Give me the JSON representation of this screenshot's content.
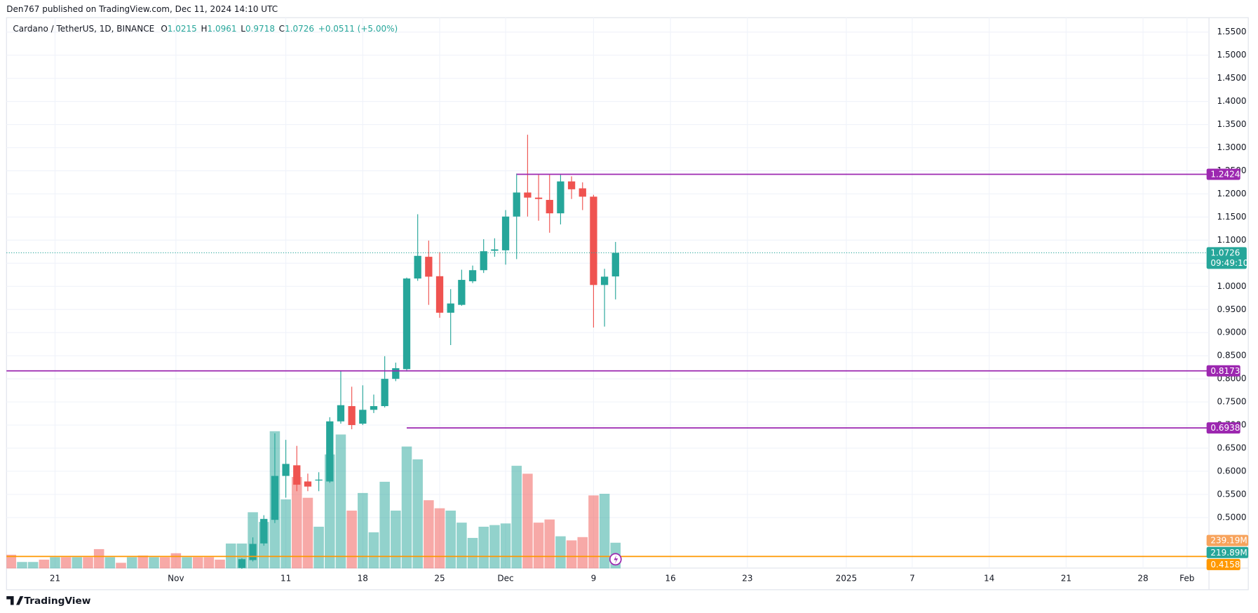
{
  "header": {
    "published": "Den767 published on TradingView.com, Dec 11, 2024 14:10 UTC",
    "brand": "TradingView"
  },
  "chart_data": {
    "type": "candlestick",
    "symbol": "Cardano / TetherUS, 1D, BINANCE",
    "legend_keys": [
      "O",
      "H",
      "L",
      "C"
    ],
    "change": "+0.0511 (+5.00%)",
    "up_color": "#26a69a",
    "down_color": "#ef5350",
    "xlim": [
      "2024-10-16",
      "2025-02-03"
    ],
    "ylim": [
      0.39,
      1.58
    ],
    "grid": true,
    "yticks": [
      {
        "value": 0.5,
        "label": "0.5000"
      },
      {
        "value": 0.55,
        "label": "0.5500"
      },
      {
        "value": 0.6,
        "label": "0.6000"
      },
      {
        "value": 0.65,
        "label": "0.6500"
      },
      {
        "value": 0.7,
        "label": "0.7000"
      },
      {
        "value": 0.75,
        "label": "0.7500"
      },
      {
        "value": 0.8,
        "label": "0.8000"
      },
      {
        "value": 0.85,
        "label": "0.8500"
      },
      {
        "value": 0.9,
        "label": "0.9000"
      },
      {
        "value": 0.95,
        "label": "0.9500"
      },
      {
        "value": 1.0,
        "label": "1.0000"
      },
      {
        "value": 1.05,
        "label": "1.0500"
      },
      {
        "value": 1.1,
        "label": "1.1000"
      },
      {
        "value": 1.15,
        "label": "1.1500"
      },
      {
        "value": 1.2,
        "label": "1.2000"
      },
      {
        "value": 1.25,
        "label": "1.2500"
      },
      {
        "value": 1.3,
        "label": "1.3000"
      },
      {
        "value": 1.35,
        "label": "1.3500"
      },
      {
        "value": 1.4,
        "label": "1.4000"
      },
      {
        "value": 1.45,
        "label": "1.4500"
      },
      {
        "value": 1.5,
        "label": "1.5000"
      },
      {
        "value": 1.55,
        "label": "1.5500"
      }
    ],
    "xticks": [
      {
        "value": "2024-10-21",
        "label": "21"
      },
      {
        "value": "2024-11-01",
        "label": "Nov"
      },
      {
        "value": "2024-11-11",
        "label": "11"
      },
      {
        "value": "2024-11-18",
        "label": "18"
      },
      {
        "value": "2024-11-25",
        "label": "25"
      },
      {
        "value": "2024-12-01",
        "label": "Dec"
      },
      {
        "value": "2024-12-09",
        "label": "9"
      },
      {
        "value": "2024-12-16",
        "label": "16"
      },
      {
        "value": "2024-12-23",
        "label": "23"
      },
      {
        "value": "2025-01-01",
        "label": "2025"
      },
      {
        "value": "2025-01-07",
        "label": "7"
      },
      {
        "value": "2025-01-14",
        "label": "14"
      },
      {
        "value": "2025-01-21",
        "label": "21"
      },
      {
        "value": "2025-01-28",
        "label": "28"
      },
      {
        "value": "2025-02-01",
        "label": "Feb"
      }
    ],
    "candles": [
      {
        "x": "2024-11-07",
        "o": 0.391,
        "h": 0.412,
        "l": 0.389,
        "c": 0.41
      },
      {
        "x": "2024-11-08",
        "o": 0.408,
        "h": 0.457,
        "l": 0.405,
        "c": 0.443
      },
      {
        "x": "2024-11-09",
        "o": 0.444,
        "h": 0.505,
        "l": 0.439,
        "c": 0.497
      },
      {
        "x": "2024-11-10",
        "o": 0.495,
        "h": 0.682,
        "l": 0.488,
        "c": 0.59
      },
      {
        "x": "2024-11-11",
        "o": 0.59,
        "h": 0.668,
        "l": 0.543,
        "c": 0.616
      },
      {
        "x": "2024-11-12",
        "o": 0.613,
        "h": 0.655,
        "l": 0.557,
        "c": 0.571
      },
      {
        "x": "2024-11-13",
        "o": 0.578,
        "h": 0.595,
        "l": 0.557,
        "c": 0.567
      },
      {
        "x": "2024-11-14",
        "o": 0.58,
        "h": 0.598,
        "l": 0.557,
        "c": 0.582
      },
      {
        "x": "2024-11-15",
        "o": 0.578,
        "h": 0.717,
        "l": 0.575,
        "c": 0.708
      },
      {
        "x": "2024-11-16",
        "o": 0.708,
        "h": 0.818,
        "l": 0.703,
        "c": 0.743
      },
      {
        "x": "2024-11-17",
        "o": 0.741,
        "h": 0.783,
        "l": 0.691,
        "c": 0.7
      },
      {
        "x": "2024-11-18",
        "o": 0.703,
        "h": 0.786,
        "l": 0.7,
        "c": 0.733
      },
      {
        "x": "2024-11-19",
        "o": 0.733,
        "h": 0.766,
        "l": 0.726,
        "c": 0.741
      },
      {
        "x": "2024-11-20",
        "o": 0.741,
        "h": 0.849,
        "l": 0.738,
        "c": 0.8
      },
      {
        "x": "2024-11-21",
        "o": 0.8,
        "h": 0.835,
        "l": 0.795,
        "c": 0.823
      },
      {
        "x": "2024-11-22",
        "o": 0.821,
        "h": 1.019,
        "l": 0.816,
        "c": 1.017
      },
      {
        "x": "2024-11-23",
        "o": 1.017,
        "h": 1.156,
        "l": 1.012,
        "c": 1.066
      },
      {
        "x": "2024-11-24",
        "o": 1.064,
        "h": 1.099,
        "l": 0.96,
        "c": 1.021
      },
      {
        "x": "2024-11-25",
        "o": 1.022,
        "h": 1.074,
        "l": 0.932,
        "c": 0.943
      },
      {
        "x": "2024-11-26",
        "o": 0.943,
        "h": 0.994,
        "l": 0.873,
        "c": 0.963
      },
      {
        "x": "2024-11-27",
        "o": 0.96,
        "h": 1.036,
        "l": 0.958,
        "c": 1.014
      },
      {
        "x": "2024-11-28",
        "o": 1.011,
        "h": 1.045,
        "l": 1.007,
        "c": 1.035
      },
      {
        "x": "2024-11-29",
        "o": 1.035,
        "h": 1.102,
        "l": 1.029,
        "c": 1.076
      },
      {
        "x": "2024-11-30",
        "o": 1.077,
        "h": 1.104,
        "l": 1.064,
        "c": 1.08
      },
      {
        "x": "2024-12-01",
        "o": 1.078,
        "h": 1.165,
        "l": 1.047,
        "c": 1.151
      },
      {
        "x": "2024-12-02",
        "o": 1.151,
        "h": 1.244,
        "l": 1.059,
        "c": 1.203
      },
      {
        "x": "2024-12-03",
        "o": 1.203,
        "h": 1.328,
        "l": 1.151,
        "c": 1.192
      },
      {
        "x": "2024-12-04",
        "o": 1.192,
        "h": 1.241,
        "l": 1.142,
        "c": 1.189
      },
      {
        "x": "2024-12-05",
        "o": 1.187,
        "h": 1.241,
        "l": 1.116,
        "c": 1.158
      },
      {
        "x": "2024-12-06",
        "o": 1.158,
        "h": 1.241,
        "l": 1.134,
        "c": 1.227
      },
      {
        "x": "2024-12-07",
        "o": 1.227,
        "h": 1.238,
        "l": 1.189,
        "c": 1.21
      },
      {
        "x": "2024-12-08",
        "o": 1.212,
        "h": 1.225,
        "l": 1.165,
        "c": 1.194
      },
      {
        "x": "2024-12-09",
        "o": 1.194,
        "h": 1.198,
        "l": 0.911,
        "c": 1.003
      },
      {
        "x": "2024-12-10",
        "o": 1.003,
        "h": 1.038,
        "l": 0.913,
        "c": 1.021
      },
      {
        "x": "2024-12-11",
        "o": 1.0215,
        "h": 1.0961,
        "l": 0.9718,
        "c": 1.0726
      }
    ],
    "volume": {
      "vlim": [
        0,
        4713
      ],
      "x": [
        "2024-10-17",
        "2024-10-18",
        "2024-10-19",
        "2024-10-20",
        "2024-10-21",
        "2024-10-22",
        "2024-10-23",
        "2024-10-24",
        "2024-10-25",
        "2024-10-26",
        "2024-10-27",
        "2024-10-28",
        "2024-10-29",
        "2024-10-30",
        "2024-10-31",
        "2024-11-01",
        "2024-11-02",
        "2024-11-03",
        "2024-11-04",
        "2024-11-05",
        "2024-11-06",
        "2024-11-07",
        "2024-11-08",
        "2024-11-09",
        "2024-11-10",
        "2024-11-11",
        "2024-11-12",
        "2024-11-13",
        "2024-11-14",
        "2024-11-15",
        "2024-11-16",
        "2024-11-17",
        "2024-11-18",
        "2024-11-19",
        "2024-11-20",
        "2024-11-21",
        "2024-11-22",
        "2024-11-23",
        "2024-11-24",
        "2024-11-25",
        "2024-11-26",
        "2024-11-27",
        "2024-11-28",
        "2024-11-29",
        "2024-11-30",
        "2024-12-01",
        "2024-12-02",
        "2024-12-03",
        "2024-12-04",
        "2024-12-05",
        "2024-12-06",
        "2024-12-07",
        "2024-12-08",
        "2024-12-09",
        "2024-12-10",
        "2024-12-11"
      ],
      "values": [
        117,
        55,
        55,
        75,
        96,
        96,
        96,
        96,
        165,
        96,
        48,
        96,
        110,
        96,
        96,
        130,
        96,
        96,
        96,
        75,
        213,
        213,
        481,
        398,
        1175,
        591,
        783,
        605,
        357,
        976,
        1147,
        495,
        646,
        309,
        742,
        495,
        1044,
        934,
        584,
        515,
        495,
        392,
        261,
        357,
        371,
        385,
        879,
        811,
        392,
        419,
        275,
        240,
        268,
        625,
        639,
        219.89
      ],
      "colors": [
        "#ef5350",
        "#26a69a",
        "#26a69a",
        "#ef5350",
        "#26a69a",
        "#ef5350",
        "#26a69a",
        "#ef5350",
        "#ef5350",
        "#26a69a",
        "#ef5350",
        "#26a69a",
        "#ef5350",
        "#26a69a",
        "#ef5350",
        "#ef5350",
        "#26a69a",
        "#ef5350",
        "#ef5350",
        "#ef5350",
        "#26a69a",
        "#26a69a",
        "#26a69a",
        "#26a69a",
        "#26a69a",
        "#26a69a",
        "#ef5350",
        "#ef5350",
        "#26a69a",
        "#26a69a",
        "#26a69a",
        "#ef5350",
        "#26a69a",
        "#26a69a",
        "#26a69a",
        "#26a69a",
        "#26a69a",
        "#26a69a",
        "#ef5350",
        "#ef5350",
        "#26a69a",
        "#26a69a",
        "#26a69a",
        "#26a69a",
        "#26a69a",
        "#26a69a",
        "#26a69a",
        "#ef5350",
        "#ef5350",
        "#ef5350",
        "#26a69a",
        "#ef5350",
        "#ef5350",
        "#ef5350",
        "#26a69a",
        "#26a69a"
      ],
      "last_label": "219.89M",
      "ma": {
        "value": 239.19,
        "label": "239.19M",
        "color": "#f7a35c"
      }
    },
    "levels": [
      {
        "value": 1.2424,
        "from": "2024-12-02",
        "color": "#9c27b0"
      },
      {
        "value": 0.8173,
        "color": "#9c27b0"
      },
      {
        "value": 0.6938,
        "from": "2024-11-22",
        "color": "#9c27b0"
      },
      {
        "value": 0.4158,
        "color": "#ff9800"
      }
    ],
    "last_price": {
      "value": 1.0726,
      "countdown": "09:49:10",
      "color": "#26a69a"
    }
  }
}
